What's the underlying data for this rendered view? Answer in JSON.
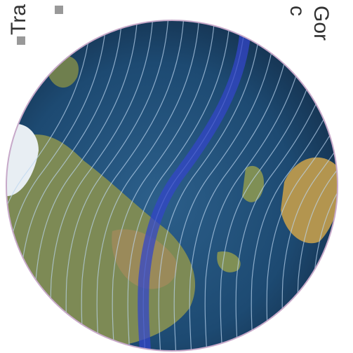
{
  "labels": {
    "left": "Tra",
    "right_1": "c",
    "right_2": "Gor"
  }
}
